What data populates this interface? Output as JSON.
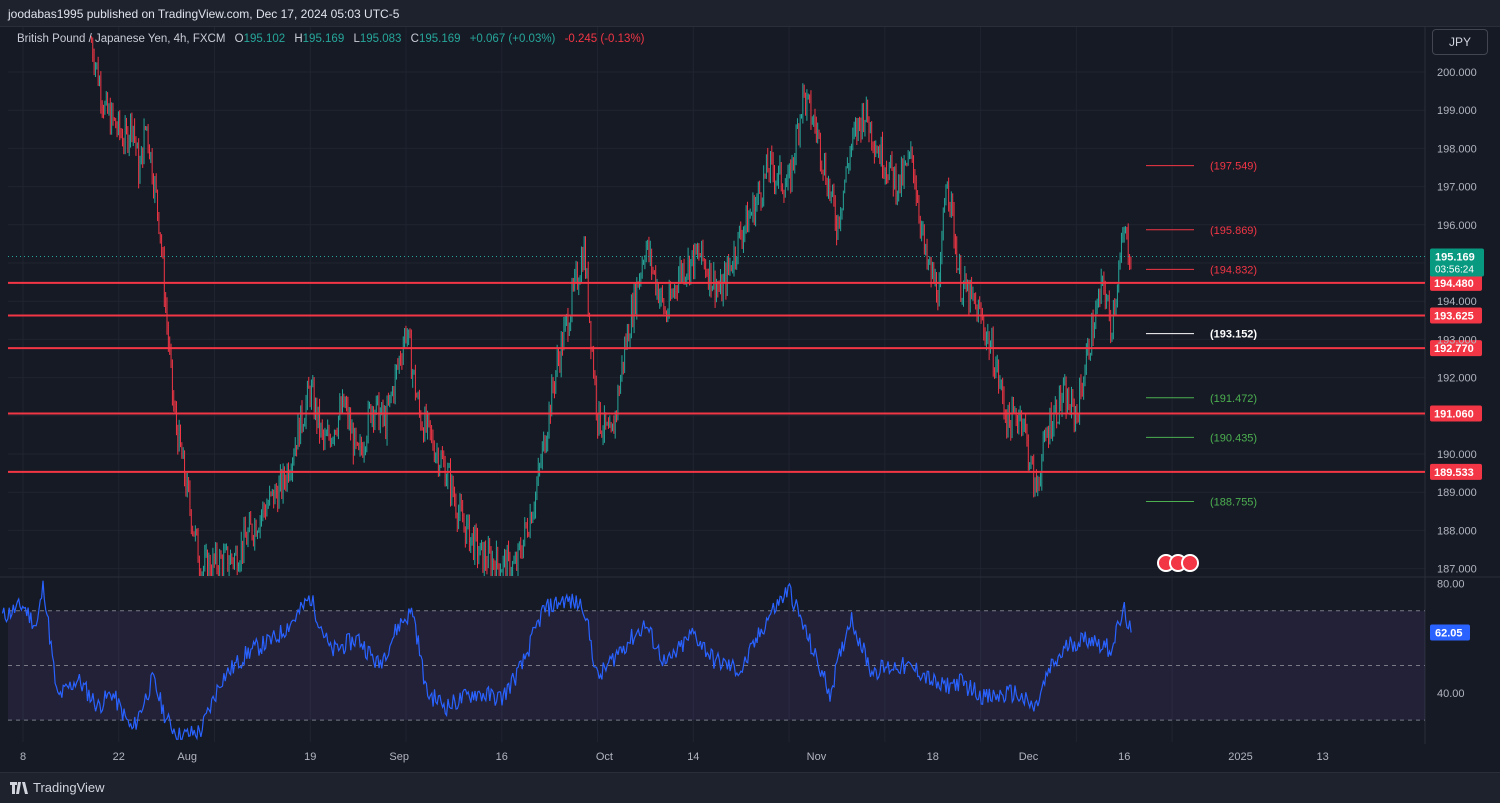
{
  "header": {
    "published": "joodabas1995 published on TradingView.com, Dec 17, 2024 05:03 UTC-5"
  },
  "legend": {
    "symbol": "British Pound / Japanese Yen, 4h, FXCM",
    "open_label": "O",
    "open": "195.102",
    "high_label": "H",
    "high": "195.169",
    "low_label": "L",
    "low": "195.083",
    "close_label": "C",
    "close": "195.169",
    "change": "+0.067 (+0.03%)",
    "day_change": "-0.245 (-0.13%)"
  },
  "currency_button": "JPY",
  "footer": {
    "brand": "TradingView"
  },
  "colors": {
    "up": "#26a69a",
    "down": "#f23645",
    "level_line": "#f23645",
    "rsi": "#2962ff",
    "bg": "#161a25"
  },
  "chart_data": {
    "type": "candlestick",
    "symbol": "GBPJPY",
    "timeframe": "4h",
    "x_ticks": [
      "8",
      "22",
      "Aug",
      "19",
      "Sep",
      "16",
      "Oct",
      "14",
      "Nov",
      "18",
      "Dec",
      "16",
      "2025",
      "13"
    ],
    "y_ticks": [
      "200.000",
      "199.000",
      "198.000",
      "197.000",
      "196.000",
      "194.000",
      "193.000",
      "192.000",
      "190.000",
      "189.000",
      "188.000",
      "187.000"
    ],
    "ylim": [
      186.9,
      200.8
    ],
    "last_price": "195.169",
    "countdown": "03:56:24",
    "price_path": [
      [
        "Jul 18",
        200.8
      ],
      [
        "Jul 20",
        199.0
      ],
      [
        "Jul 23",
        198.2
      ],
      [
        "Jul 24",
        198.8
      ],
      [
        "Jul 25",
        197.3
      ],
      [
        "Jul 26",
        198.7
      ],
      [
        "Jul 28",
        196.0
      ],
      [
        "Jul 29",
        193.5
      ],
      [
        "Jul 30",
        191.2
      ],
      [
        "Aug 1",
        189.0
      ],
      [
        "Aug 3",
        187.0
      ],
      [
        "Aug 8",
        187.3
      ],
      [
        "Aug 12",
        188.5
      ],
      [
        "Aug 15",
        189.2
      ],
      [
        "Aug 19",
        191.7
      ],
      [
        "Aug 21",
        190.2
      ],
      [
        "Aug 24",
        191.3
      ],
      [
        "Aug 26",
        189.8
      ],
      [
        "Aug 28",
        191.3
      ],
      [
        "Aug 30",
        190.8
      ],
      [
        "Sep 2",
        193.3
      ],
      [
        "Sep 4",
        191.0
      ],
      [
        "Sep 8",
        189.5
      ],
      [
        "Sep 10",
        188.3
      ],
      [
        "Sep 13",
        187.3
      ],
      [
        "Sep 18",
        187.0
      ],
      [
        "Sep 21",
        189.0
      ],
      [
        "Sep 24",
        192.3
      ],
      [
        "Sep 26",
        193.8
      ],
      [
        "Sep 28",
        195.4
      ],
      [
        "Sep 30",
        191.0
      ],
      [
        "Oct 2",
        190.3
      ],
      [
        "Oct 4",
        192.8
      ],
      [
        "Oct 7",
        195.5
      ],
      [
        "Oct 10",
        193.6
      ],
      [
        "Oct 12",
        194.8
      ],
      [
        "Oct 15",
        195.2
      ],
      [
        "Oct 18",
        194.2
      ],
      [
        "Oct 21",
        195.8
      ],
      [
        "Oct 23",
        196.5
      ],
      [
        "Oct 25",
        197.5
      ],
      [
        "Oct 28",
        197.0
      ],
      [
        "Oct 30",
        199.4
      ],
      [
        "Nov 1",
        198.5
      ],
      [
        "Nov 4",
        196.0
      ],
      [
        "Nov 6",
        198.0
      ],
      [
        "Nov 8",
        199.0
      ],
      [
        "Nov 10",
        198.0
      ],
      [
        "Nov 13",
        197.0
      ],
      [
        "Nov 15",
        197.8
      ],
      [
        "Nov 17",
        195.0
      ],
      [
        "Nov 19",
        194.2
      ],
      [
        "Nov 20",
        197.5
      ],
      [
        "Nov 22",
        194.5
      ],
      [
        "Nov 25",
        193.6
      ],
      [
        "Nov 27",
        192.5
      ],
      [
        "Nov 29",
        190.8
      ],
      [
        "Dec 1",
        191.1
      ],
      [
        "Dec 3",
        189.0
      ],
      [
        "Dec 5",
        190.8
      ],
      [
        "Dec 7",
        191.5
      ],
      [
        "Dec 9",
        191.0
      ],
      [
        "Dec 11",
        193.0
      ],
      [
        "Dec 13",
        194.5
      ],
      [
        "Dec 14",
        193.3
      ],
      [
        "Dec 16",
        195.8
      ],
      [
        "Dec 17",
        195.169
      ]
    ],
    "horizontal_levels": [
      {
        "price": 194.48,
        "label": "194.480"
      },
      {
        "price": 193.625,
        "label": "193.625"
      },
      {
        "price": 192.77,
        "label": "192.770"
      },
      {
        "price": 191.06,
        "label": "191.060"
      },
      {
        "price": 189.533,
        "label": "189.533"
      }
    ],
    "target_levels": [
      {
        "price": 197.549,
        "label": "(197.549)",
        "color": "#f23645"
      },
      {
        "price": 195.869,
        "label": "(195.869)",
        "color": "#f23645"
      },
      {
        "price": 194.832,
        "label": "(194.832)",
        "color": "#f23645"
      },
      {
        "price": 193.152,
        "label": "(193.152)",
        "color": "#ffffff"
      },
      {
        "price": 191.472,
        "label": "(191.472)",
        "color": "#4caf50"
      },
      {
        "price": 190.435,
        "label": "(190.435)",
        "color": "#4caf50"
      },
      {
        "price": 188.755,
        "label": "(188.755)",
        "color": "#4caf50"
      }
    ],
    "rsi": {
      "ticks": [
        "80.00",
        "40.00"
      ],
      "ylim": [
        22,
        82
      ],
      "upper_band": 70,
      "middle_band": 50,
      "lower_band": 30,
      "value": "62.05",
      "path": [
        [
          "Jul 5",
          68
        ],
        [
          "Jul 8",
          72
        ],
        [
          "Jul 10",
          64
        ],
        [
          "Jul 11",
          80
        ],
        [
          "Jul 13",
          38
        ],
        [
          "Jul 16",
          45
        ],
        [
          "Jul 19",
          35
        ],
        [
          "Jul 21",
          40
        ],
        [
          "Jul 24",
          26
        ],
        [
          "Jul 27",
          45
        ],
        [
          "Jul 29",
          30
        ],
        [
          "Jul 31",
          24
        ],
        [
          "Aug 3",
          26
        ],
        [
          "Aug 6",
          45
        ],
        [
          "Aug 10",
          55
        ],
        [
          "Aug 14",
          60
        ],
        [
          "Aug 17",
          68
        ],
        [
          "Aug 19",
          75
        ],
        [
          "Aug 22",
          55
        ],
        [
          "Aug 26",
          60
        ],
        [
          "Aug 29",
          50
        ],
        [
          "Sep 1",
          65
        ],
        [
          "Sep 3",
          70
        ],
        [
          "Sep 5",
          40
        ],
        [
          "Sep 8",
          35
        ],
        [
          "Sep 12",
          40
        ],
        [
          "Sep 16",
          38
        ],
        [
          "Sep 19",
          50
        ],
        [
          "Sep 22",
          70
        ],
        [
          "Sep 25",
          74
        ],
        [
          "Sep 28",
          72
        ],
        [
          "Sep 30",
          45
        ],
        [
          "Oct 3",
          55
        ],
        [
          "Oct 7",
          65
        ],
        [
          "Oct 10",
          50
        ],
        [
          "Oct 14",
          62
        ],
        [
          "Oct 17",
          52
        ],
        [
          "Oct 21",
          48
        ],
        [
          "Oct 25",
          68
        ],
        [
          "Oct 28",
          78
        ],
        [
          "Nov 1",
          52
        ],
        [
          "Nov 3",
          40
        ],
        [
          "Nov 6",
          68
        ],
        [
          "Nov 9",
          48
        ],
        [
          "Nov 13",
          50
        ],
        [
          "Nov 16",
          48
        ],
        [
          "Nov 19",
          42
        ],
        [
          "Nov 22",
          44
        ],
        [
          "Nov 26",
          38
        ],
        [
          "Nov 30",
          40
        ],
        [
          "Dec 3",
          34
        ],
        [
          "Dec 5",
          48
        ],
        [
          "Dec 8",
          58
        ],
        [
          "Dec 11",
          60
        ],
        [
          "Dec 14",
          56
        ],
        [
          "Dec 16",
          70
        ],
        [
          "Dec 17",
          62.05
        ]
      ]
    }
  }
}
